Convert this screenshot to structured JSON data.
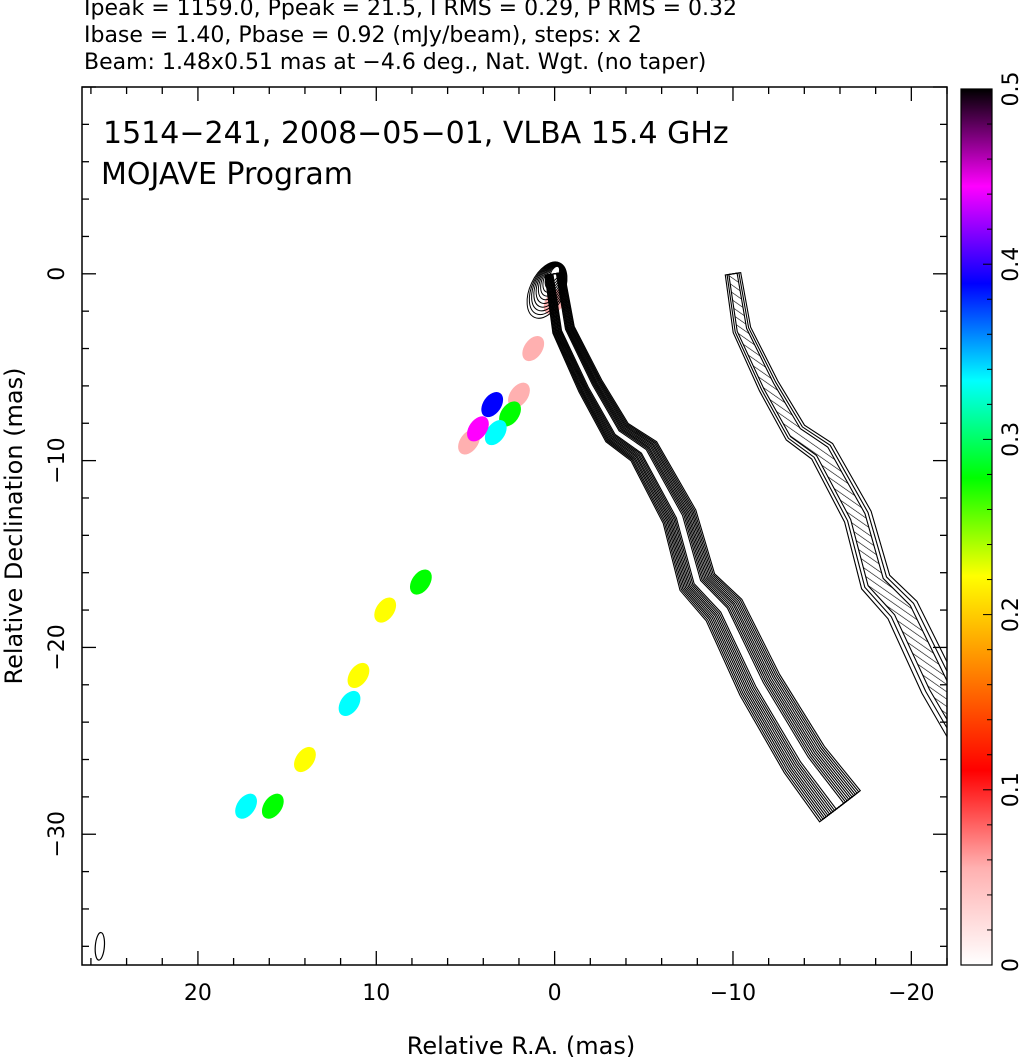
{
  "header": {
    "line1": "Ipeak = 1159.0, Ppeak = 21.5, I RMS = 0.29, P RMS = 0.32",
    "line2": "Ibase = 1.40, Pbase = 0.92 (mJy/beam), steps: x 2",
    "line3": "Beam: 1.48x0.51 mas at −4.6 deg., Nat. Wgt. (no taper)"
  },
  "chart_data": {
    "type": "heatmap",
    "title": "1514−241, 2008−05−01, VLBA 15.4 GHz",
    "subtitle": "MOJAVE Program",
    "xlabel": "Relative R.A. (mas)",
    "ylabel": "Relative Declination (mas)",
    "xlim": [
      26.5,
      -22
    ],
    "ylim": [
      -37,
      10
    ],
    "x_ticks": [
      {
        "value": 20,
        "label": "20"
      },
      {
        "value": 10,
        "label": "10"
      },
      {
        "value": 0,
        "label": "0"
      },
      {
        "value": -10,
        "label": "−10"
      },
      {
        "value": -20,
        "label": "−20"
      }
    ],
    "y_ticks": [
      {
        "value": 0,
        "label": "0"
      },
      {
        "value": -10,
        "label": "−10"
      },
      {
        "value": -20,
        "label": "−20"
      },
      {
        "value": -30,
        "label": "−30"
      }
    ],
    "colorbar": {
      "range": [
        0,
        0.5
      ],
      "ticks": [
        {
          "value": 0,
          "label": "0"
        },
        {
          "value": 0.1,
          "label": "0.1"
        },
        {
          "value": 0.2,
          "label": "0.2"
        },
        {
          "value": 0.3,
          "label": "0.3"
        },
        {
          "value": 0.4,
          "label": "0.4"
        },
        {
          "value": 0.5,
          "label": "0.5"
        }
      ],
      "colormap": [
        "#ffffff",
        "#ffb0b0",
        "#ff0000",
        "#ff8000",
        "#ffff00",
        "#00ff00",
        "#00ffff",
        "#0000ff",
        "#ff00ff",
        "#000000"
      ]
    },
    "jet_ridge": [
      [
        0,
        0
      ],
      [
        -0.5,
        -3
      ],
      [
        -2,
        -6
      ],
      [
        -3.5,
        -8.5
      ],
      [
        -5,
        -9.5
      ],
      [
        -7,
        -13
      ],
      [
        -8,
        -16.5
      ],
      [
        -9.5,
        -18
      ],
      [
        -11.5,
        -22
      ],
      [
        -14,
        -26
      ],
      [
        -16,
        -28.5
      ]
    ],
    "core": {
      "x": 0,
      "y": 0
    },
    "contour_levels_count": 11,
    "fractional_polarization_blobs": [
      {
        "x": 0,
        "y": -1.5,
        "v": 0.08
      },
      {
        "x": 1.2,
        "y": -4,
        "v": 0.06
      },
      {
        "x": 2,
        "y": -6.5,
        "v": 0.05
      },
      {
        "x": 2.5,
        "y": -7.5,
        "v": 0.3
      },
      {
        "x": 3.5,
        "y": -7,
        "v": 0.4
      },
      {
        "x": 3.3,
        "y": -8.5,
        "v": 0.35
      },
      {
        "x": 4.8,
        "y": -9,
        "v": 0.08
      },
      {
        "x": 4.3,
        "y": -8.3,
        "v": 0.42
      },
      {
        "x": 7.5,
        "y": -16.5,
        "v": 0.3
      },
      {
        "x": 9.5,
        "y": -18,
        "v": 0.2
      },
      {
        "x": 11,
        "y": -21.5,
        "v": 0.2
      },
      {
        "x": 11.5,
        "y": -23,
        "v": 0.35
      },
      {
        "x": 14,
        "y": -26,
        "v": 0.25
      },
      {
        "x": 15.8,
        "y": -28.5,
        "v": 0.27
      },
      {
        "x": 17.3,
        "y": -28.5,
        "v": 0.35
      }
    ],
    "beam": {
      "major": 1.48,
      "minor": 0.51,
      "pa": -4.6,
      "x": 25.5,
      "y": -36
    }
  }
}
